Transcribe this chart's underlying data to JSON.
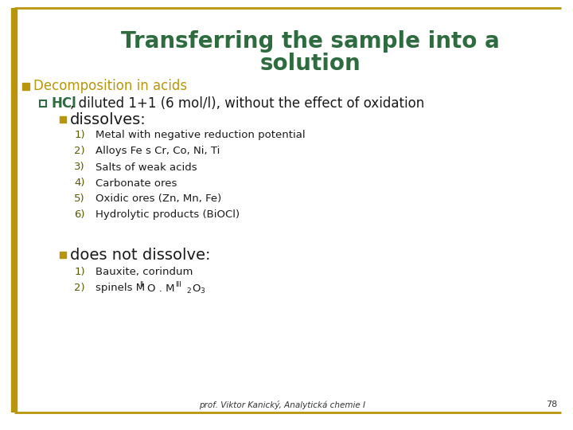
{
  "title_line1": "Transferring the sample into a",
  "title_line2": "solution",
  "title_color": "#2E6B3E",
  "background_color": "#FFFFFF",
  "border_color": "#B8960C",
  "bullet1_color": "#B8960C",
  "bullet1_text": "Decomposition in acids",
  "sub_bullet_color": "#2E6B3E",
  "sub_bullet_text_bold": "HCl",
  "sub_bullet_text_rest": ", diluted 1+1 (6 mol/l), without the effect of oxidation",
  "dissolves_text": "dissolves:",
  "dissolves_items": [
    "Metal with negative reduction potential",
    "Alloys Fe s Cr, Co, Ni, Ti",
    "Salts of weak acids",
    "Carbonate ores",
    "Oxidic ores (Zn, Mn, Fe)",
    "Hydrolytic products (BiOCl)"
  ],
  "does_not_dissolve_text": "does not dissolve:",
  "does_not_dissolve_items": [
    "Bauxite, corindum"
  ],
  "footer_text": "prof. Viktor Kanický, Analytická chemie I",
  "page_number": "78",
  "text_color_dark": "#1a1a1a",
  "number_color": "#5a5a00"
}
